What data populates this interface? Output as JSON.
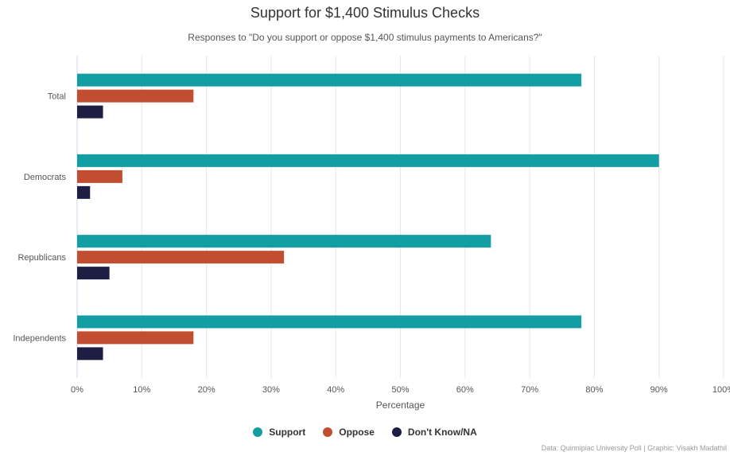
{
  "chart_data": {
    "type": "bar",
    "orientation": "horizontal",
    "title": "Support for $1,400 Stimulus Checks",
    "subtitle": "Responses to \"Do you support or oppose $1,400 stimulus payments to Americans?\"",
    "categories": [
      "Total",
      "Democrats",
      "Republicans",
      "Independents"
    ],
    "series": [
      {
        "name": "Support",
        "color": "#139ea3",
        "values": [
          78,
          90,
          64,
          78
        ]
      },
      {
        "name": "Oppose",
        "color": "#c24e31",
        "values": [
          18,
          7,
          32,
          18
        ]
      },
      {
        "name": "Don't Know/NA",
        "color": "#1e1e45",
        "values": [
          4,
          2,
          5,
          4
        ]
      }
    ],
    "xlabel": "Percentage",
    "ylabel": "",
    "xlim": [
      0,
      100
    ],
    "xticks": [
      "0%",
      "10%",
      "20%",
      "30%",
      "40%",
      "50%",
      "60%",
      "70%",
      "80%",
      "90%",
      "100%"
    ],
    "grid": true,
    "legend_position": "bottom",
    "credits": "Data: Quinnipiac University Poll | Graphic: Visakh Madathil"
  }
}
